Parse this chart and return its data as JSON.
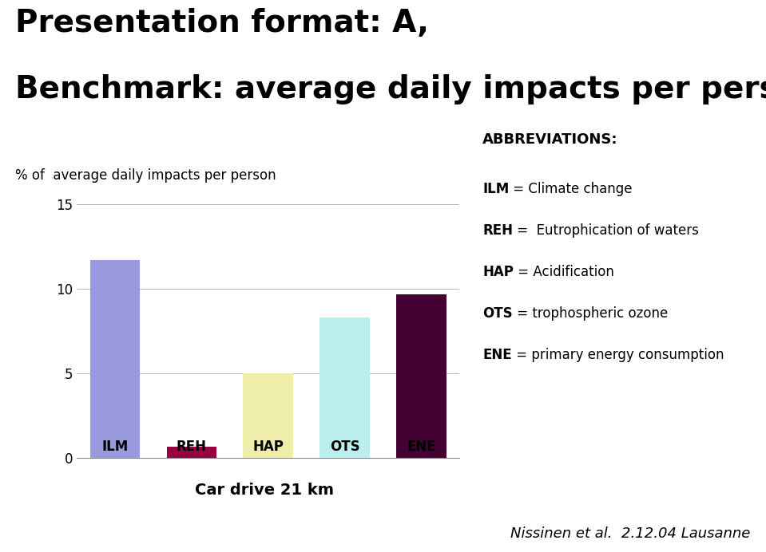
{
  "title_line1": "Presentation format: A,",
  "title_line2": "Benchmark: average daily impacts per person",
  "ylabel": "% of  average daily impacts per person",
  "xlabel_group": "Car drive 21 km",
  "categories": [
    "ILM",
    "REH",
    "HAP",
    "OTS",
    "ENE"
  ],
  "values": [
    11.7,
    0.7,
    5.0,
    8.3,
    9.7
  ],
  "bar_colors": [
    "#9999dd",
    "#990044",
    "#eeeeaa",
    "#bbeeee",
    "#440033"
  ],
  "ylim": [
    0,
    15
  ],
  "yticks": [
    0,
    5,
    10,
    15
  ],
  "abbreviations_title": "ABBREVIATIONS:",
  "abbrev_bold": [
    "ILM",
    "REH",
    "HAP",
    "OTS",
    "ENE"
  ],
  "abbrev_rest": [
    " = Climate change",
    " =  Eutrophication of waters",
    " = Acidification",
    " = trophospheric ozone",
    " = primary energy consumption"
  ],
  "footnote": "Nissinen et al.  2.12.04 Lausanne",
  "background_color": "#ffffff",
  "title_fontsize": 28,
  "ylabel_fontsize": 12,
  "bar_label_fontsize": 12,
  "abbrev_title_fontsize": 13,
  "abbrev_fontsize": 12,
  "footnote_fontsize": 13
}
